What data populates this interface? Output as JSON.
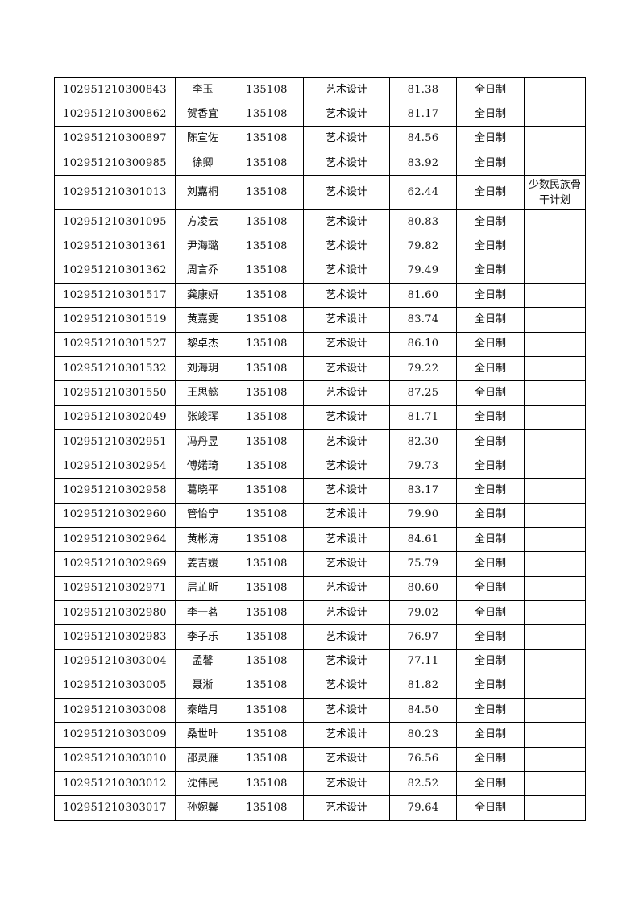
{
  "rows": [
    [
      "102951210300843",
      "李玉",
      "135108",
      "艺术设计",
      "81.38",
      "全日制",
      ""
    ],
    [
      "102951210300862",
      "贺香宜",
      "135108",
      "艺术设计",
      "81.17",
      "全日制",
      ""
    ],
    [
      "102951210300897",
      "陈宣佐",
      "135108",
      "艺术设计",
      "84.56",
      "全日制",
      ""
    ],
    [
      "102951210300985",
      "徐卿",
      "135108",
      "艺术设计",
      "83.92",
      "全日制",
      ""
    ],
    [
      "102951210301013",
      "刘嘉桐",
      "135108",
      "艺术设计",
      "62.44",
      "全日制",
      "少数民族骨干计划"
    ],
    [
      "102951210301095",
      "方凌云",
      "135108",
      "艺术设计",
      "80.83",
      "全日制",
      ""
    ],
    [
      "102951210301361",
      "尹海璐",
      "135108",
      "艺术设计",
      "79.82",
      "全日制",
      ""
    ],
    [
      "102951210301362",
      "周言乔",
      "135108",
      "艺术设计",
      "79.49",
      "全日制",
      ""
    ],
    [
      "102951210301517",
      "龚康妍",
      "135108",
      "艺术设计",
      "81.60",
      "全日制",
      ""
    ],
    [
      "102951210301519",
      "黄嘉雯",
      "135108",
      "艺术设计",
      "83.74",
      "全日制",
      ""
    ],
    [
      "102951210301527",
      "黎卓杰",
      "135108",
      "艺术设计",
      "86.10",
      "全日制",
      ""
    ],
    [
      "102951210301532",
      "刘海玥",
      "135108",
      "艺术设计",
      "79.22",
      "全日制",
      ""
    ],
    [
      "102951210301550",
      "王思懿",
      "135108",
      "艺术设计",
      "87.25",
      "全日制",
      ""
    ],
    [
      "102951210302049",
      "张竣珲",
      "135108",
      "艺术设计",
      "81.71",
      "全日制",
      ""
    ],
    [
      "102951210302951",
      "冯丹昱",
      "135108",
      "艺术设计",
      "82.30",
      "全日制",
      ""
    ],
    [
      "102951210302954",
      "傅婼琦",
      "135108",
      "艺术设计",
      "79.73",
      "全日制",
      ""
    ],
    [
      "102951210302958",
      "葛晓平",
      "135108",
      "艺术设计",
      "83.17",
      "全日制",
      ""
    ],
    [
      "102951210302960",
      "管怡宁",
      "135108",
      "艺术设计",
      "79.90",
      "全日制",
      ""
    ],
    [
      "102951210302964",
      "黄彬涛",
      "135108",
      "艺术设计",
      "84.61",
      "全日制",
      ""
    ],
    [
      "102951210302969",
      "姜吉媛",
      "135108",
      "艺术设计",
      "75.79",
      "全日制",
      ""
    ],
    [
      "102951210302971",
      "居芷昕",
      "135108",
      "艺术设计",
      "80.60",
      "全日制",
      ""
    ],
    [
      "102951210302980",
      "李一茗",
      "135108",
      "艺术设计",
      "79.02",
      "全日制",
      ""
    ],
    [
      "102951210302983",
      "李子乐",
      "135108",
      "艺术设计",
      "76.97",
      "全日制",
      ""
    ],
    [
      "102951210303004",
      "孟馨",
      "135108",
      "艺术设计",
      "77.11",
      "全日制",
      ""
    ],
    [
      "102951210303005",
      "聂淅",
      "135108",
      "艺术设计",
      "81.82",
      "全日制",
      ""
    ],
    [
      "102951210303008",
      "秦皓月",
      "135108",
      "艺术设计",
      "84.50",
      "全日制",
      ""
    ],
    [
      "102951210303009",
      "桑世叶",
      "135108",
      "艺术设计",
      "80.23",
      "全日制",
      ""
    ],
    [
      "102951210303010",
      "邵灵雁",
      "135108",
      "艺术设计",
      "76.56",
      "全日制",
      ""
    ],
    [
      "102951210303012",
      "沈伟民",
      "135108",
      "艺术设计",
      "82.52",
      "全日制",
      ""
    ],
    [
      "102951210303017",
      "孙婉馨",
      "135108",
      "艺术设计",
      "79.64",
      "全日制",
      ""
    ]
  ]
}
